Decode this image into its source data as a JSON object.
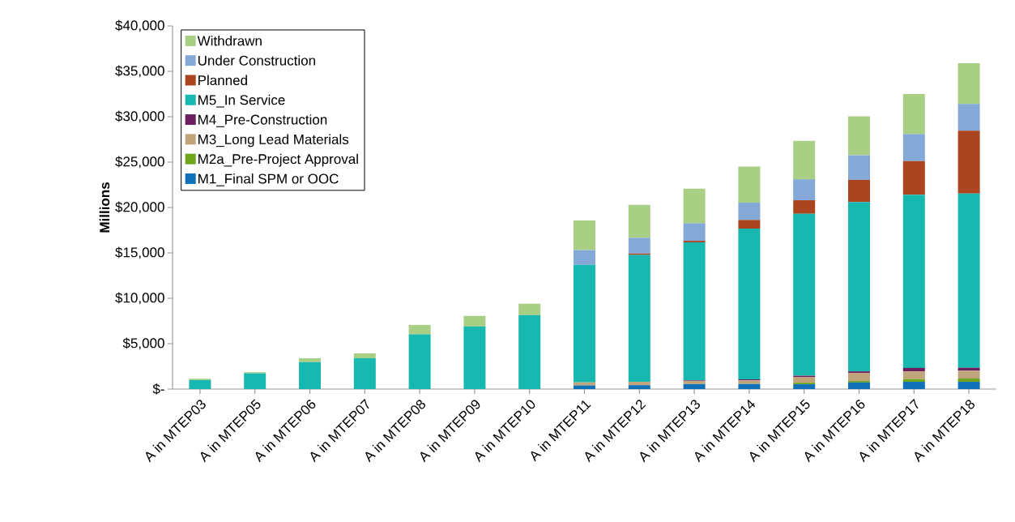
{
  "chart_data": {
    "type": "bar",
    "stacked": true,
    "ylabel": "Millions",
    "legend": "top left",
    "grid": false,
    "categories": [
      "A in MTEP03",
      "A in MTEP05",
      "A in MTEP06",
      "A in MTEP07",
      "A in MTEP08",
      "A in MTEP09",
      "A in MTEP10",
      "A in MTEP11",
      "A in MTEP12",
      "A in MTEP13",
      "A in MTEP14",
      "A in MTEP15",
      "A in MTEP16",
      "A in MTEP17",
      "A in MTEP18"
    ],
    "ylim": [
      0,
      40000
    ],
    "yticks": [
      {
        "value": 0,
        "label": "$-"
      },
      {
        "value": 5000,
        "label": "$5,000"
      },
      {
        "value": 10000,
        "label": "$10,000"
      },
      {
        "value": 15000,
        "label": "$15,000"
      },
      {
        "value": 20000,
        "label": "$20,000"
      },
      {
        "value": 25000,
        "label": "$25,000"
      },
      {
        "value": 30000,
        "label": "$30,000"
      },
      {
        "value": 35000,
        "label": "$35,000"
      },
      {
        "value": 40000,
        "label": "$40,000"
      }
    ],
    "series": [
      {
        "name": "M1_Final SPM or OOC",
        "color": "#1070b8",
        "values": [
          0,
          0,
          0,
          0,
          0,
          0,
          0,
          400,
          430,
          550,
          560,
          530,
          730,
          800,
          800
        ]
      },
      {
        "name": "M2a_Pre-Project Approval",
        "color": "#6ea51c",
        "values": [
          0,
          0,
          0,
          0,
          0,
          0,
          0,
          0,
          0,
          0,
          0,
          170,
          170,
          310,
          370
        ]
      },
      {
        "name": "M3_Long Lead Materials",
        "color": "#c0a47c",
        "values": [
          0,
          0,
          0,
          0,
          0,
          0,
          0,
          340,
          370,
          350,
          400,
          640,
          880,
          840,
          850
        ]
      },
      {
        "name": "M4_Pre-Construction",
        "color": "#6b1f5e",
        "values": [
          0,
          0,
          0,
          0,
          0,
          0,
          0,
          0,
          0,
          60,
          110,
          130,
          170,
          380,
          330
        ]
      },
      {
        "name": "M5_In Service",
        "color": "#17b8b0",
        "values": [
          1000,
          1740,
          2970,
          3390,
          6020,
          6890,
          8150,
          12940,
          13970,
          15190,
          16610,
          17840,
          18650,
          19080,
          19200
        ]
      },
      {
        "name": "Planned",
        "color": "#aa4520",
        "values": [
          0,
          0,
          0,
          0,
          0,
          0,
          0,
          0,
          160,
          180,
          950,
          1490,
          2440,
          3700,
          6910
        ]
      },
      {
        "name": "Under Construction",
        "color": "#85a9d6",
        "values": [
          0,
          0,
          0,
          0,
          0,
          0,
          0,
          1630,
          1740,
          1940,
          1900,
          2310,
          2710,
          2980,
          2950
        ]
      },
      {
        "name": "Withdrawn",
        "color": "#a9cf85",
        "values": [
          140,
          120,
          420,
          540,
          1050,
          1170,
          1250,
          3260,
          3630,
          3800,
          3970,
          4240,
          4300,
          4410,
          4480
        ]
      }
    ]
  }
}
